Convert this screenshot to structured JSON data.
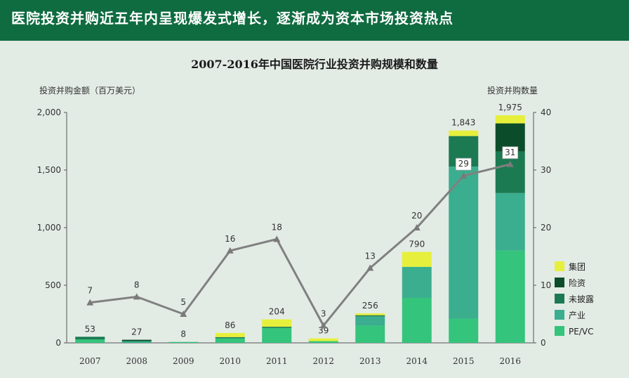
{
  "header": {
    "title": "医院投资并购近五年内呈现爆发式增长，逐渐成为资本市场投资热点"
  },
  "colors": {
    "header_bg": "#0f6b40",
    "group": "#e6f03c",
    "insurance": "#0b4d2a",
    "undisclosed": "#1c7a52",
    "industry": "#3aae8e",
    "pevc": "#34c47c",
    "line": "#808080"
  },
  "chart_data": {
    "type": "bar",
    "title": "2007-2016年中国医院行业投资并购规模和数量",
    "ylabel": "投资并购金额（百万美元）",
    "y2label": "投资并购数量",
    "ylim": [
      0,
      2000
    ],
    "y2lim": [
      0,
      40
    ],
    "yticks": [
      "0",
      "500",
      "1,000",
      "1,500",
      "2,000"
    ],
    "y2ticks": [
      "0",
      "10",
      "20",
      "30",
      "40"
    ],
    "categories": [
      "2007",
      "2008",
      "2009",
      "2010",
      "2011",
      "2012",
      "2013",
      "2014",
      "2015",
      "2016"
    ],
    "stacked": true,
    "series": [
      {
        "name": "PE/VC",
        "color": "#34c47c",
        "values": [
          30,
          0,
          8,
          40,
          130,
          15,
          150,
          390,
          210,
          800
        ]
      },
      {
        "name": "产业",
        "color": "#3aae8e",
        "values": [
          0,
          15,
          0,
          0,
          0,
          0,
          80,
          270,
          1320,
          500
        ]
      },
      {
        "name": "未披露",
        "color": "#1c7a52",
        "values": [
          23,
          0,
          0,
          10,
          10,
          0,
          10,
          0,
          265,
          360
        ]
      },
      {
        "name": "险资",
        "color": "#0b4d2a",
        "values": [
          0,
          12,
          0,
          0,
          0,
          0,
          0,
          0,
          0,
          245
        ]
      },
      {
        "name": "集团",
        "color": "#e6f03c",
        "values": [
          0,
          0,
          0,
          36,
          64,
          24,
          16,
          130,
          48,
          70
        ]
      }
    ],
    "totals": [
      "53",
      "27",
      "8",
      "86",
      "204",
      "39",
      "256",
      "790",
      "1,843",
      "1,975"
    ],
    "line": {
      "axis": "right",
      "color": "#808080",
      "values": [
        7,
        8,
        5,
        16,
        18,
        3,
        13,
        20,
        29,
        31
      ]
    },
    "boxed_counts": [
      29,
      31
    ],
    "legend": {
      "placement": "right",
      "order": [
        "集团",
        "险资",
        "未披露",
        "产业",
        "PE/VC"
      ]
    }
  }
}
